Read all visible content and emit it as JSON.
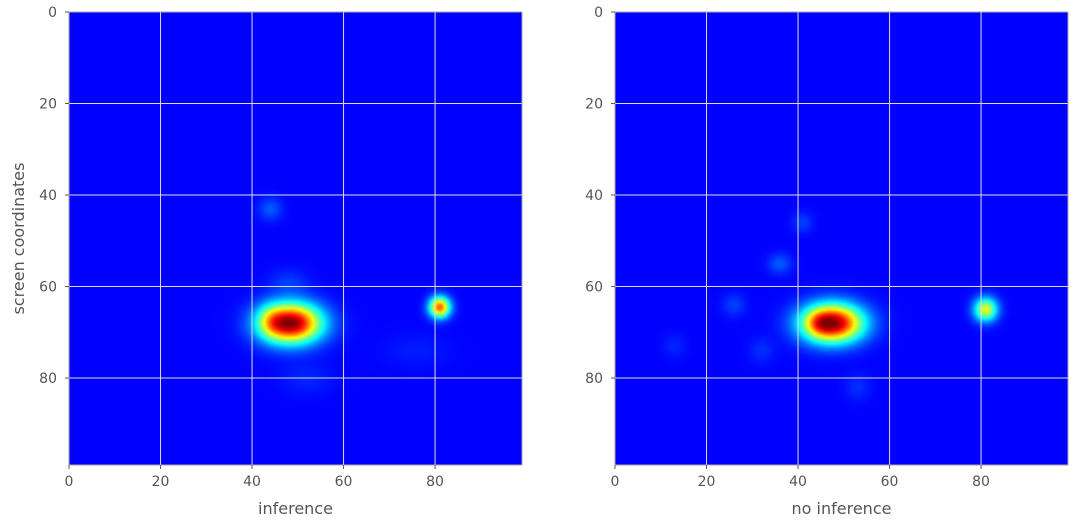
{
  "chart_data": [
    {
      "type": "heatmap",
      "title": "",
      "xlabel": "inference",
      "ylabel": "screen coordinates",
      "xlim": [
        0,
        99
      ],
      "ylim": [
        99,
        0
      ],
      "xticks": [
        0,
        20,
        40,
        60,
        80
      ],
      "yticks": [
        0,
        20,
        40,
        60,
        80
      ],
      "grid": true,
      "colormap": "jet",
      "background_color": "#000080",
      "hotspots": [
        {
          "x": 48.5,
          "y": 68,
          "sx": 4.6,
          "sy": 3.0,
          "value": 1.0
        },
        {
          "x": 44,
          "y": 67.5,
          "sx": 2.0,
          "sy": 2.5,
          "value": 0.15
        },
        {
          "x": 81,
          "y": 64.5,
          "sx": 1.6,
          "sy": 1.6,
          "value": 0.75
        },
        {
          "x": 44,
          "y": 43,
          "sx": 1.8,
          "sy": 1.8,
          "value": 0.1
        },
        {
          "x": 48,
          "y": 59,
          "sx": 3.0,
          "sy": 2.0,
          "value": 0.06
        },
        {
          "x": 52,
          "y": 80,
          "sx": 4.0,
          "sy": 2.5,
          "value": 0.04
        },
        {
          "x": 76,
          "y": 74,
          "sx": 5.0,
          "sy": 2.5,
          "value": 0.03
        }
      ]
    },
    {
      "type": "heatmap",
      "title": "",
      "xlabel": "no inference",
      "ylabel": "",
      "xlim": [
        0,
        99
      ],
      "ylim": [
        99,
        0
      ],
      "xticks": [
        0,
        20,
        40,
        60,
        80
      ],
      "yticks": [
        0,
        20,
        40,
        60,
        80
      ],
      "grid": true,
      "colormap": "jet",
      "background_color": "#000080",
      "hotspots": [
        {
          "x": 47.5,
          "y": 68,
          "sx": 4.6,
          "sy": 2.9,
          "value": 1.0
        },
        {
          "x": 44.5,
          "y": 68,
          "sx": 1.8,
          "sy": 1.8,
          "value": 0.12
        },
        {
          "x": 81,
          "y": 65,
          "sx": 1.8,
          "sy": 1.8,
          "value": 0.55
        },
        {
          "x": 36,
          "y": 55,
          "sx": 1.8,
          "sy": 1.6,
          "value": 0.1
        },
        {
          "x": 26,
          "y": 64,
          "sx": 1.8,
          "sy": 1.8,
          "value": 0.07
        },
        {
          "x": 41,
          "y": 46,
          "sx": 1.6,
          "sy": 1.6,
          "value": 0.07
        },
        {
          "x": 13,
          "y": 73,
          "sx": 1.8,
          "sy": 1.8,
          "value": 0.04
        },
        {
          "x": 32,
          "y": 74,
          "sx": 2.0,
          "sy": 2.0,
          "value": 0.05
        },
        {
          "x": 53,
          "y": 82,
          "sx": 2.0,
          "sy": 2.0,
          "value": 0.05
        }
      ]
    }
  ]
}
